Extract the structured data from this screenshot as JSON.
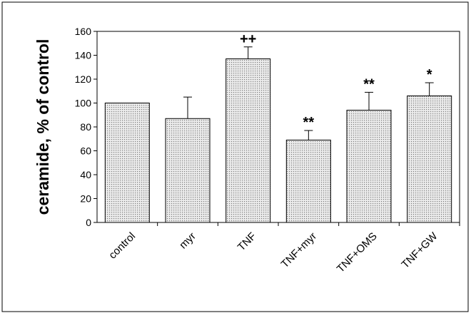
{
  "chart_data": {
    "type": "bar",
    "title": "",
    "xlabel": "",
    "ylabel": "ceramide, % of control",
    "ylim": [
      0,
      160
    ],
    "yticks": [
      0,
      20,
      40,
      60,
      80,
      100,
      120,
      140,
      160
    ],
    "ytick_labels": [
      "0",
      "20",
      "40",
      "60",
      "80",
      "100",
      "120",
      "140",
      "160"
    ],
    "grid": false,
    "legend": "none",
    "categories": [
      "control",
      "myr",
      "TNF",
      "TNF+myr",
      "TNF+OMS",
      "TNF+GW"
    ],
    "values": [
      100,
      87,
      137,
      69,
      94,
      106
    ],
    "error_upper": [
      0,
      18,
      10,
      8,
      15,
      11
    ],
    "annotations": [
      "",
      "",
      "++",
      "**",
      "**",
      "*"
    ],
    "bar_fill": "#d9d9d9",
    "bar_stroke": "#000000"
  }
}
